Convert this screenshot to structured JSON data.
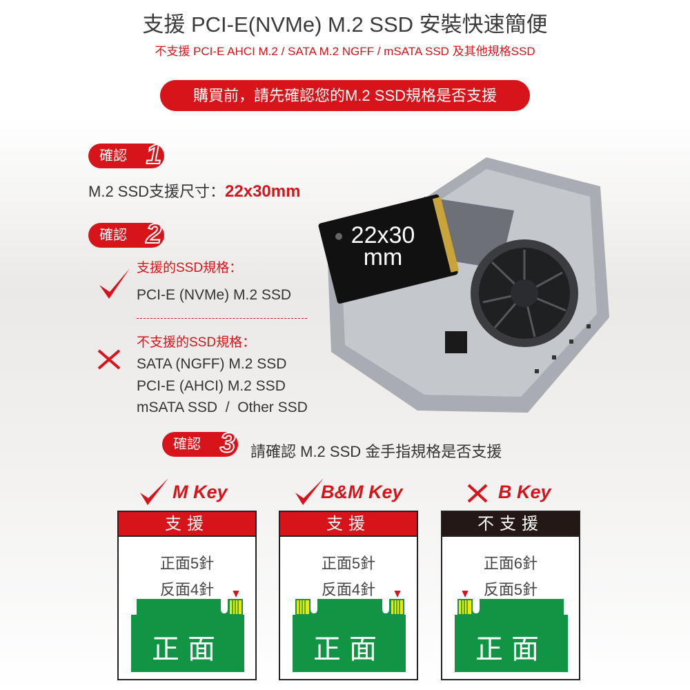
{
  "header": {
    "title": "支援 PCI-E(NVMe) M.2 SSD  安裝快速簡便",
    "subtitle": "不支援 PCI-E AHCI M.2 / SATA M.2 NGFF / mSATA SSD 及其他規格SSD",
    "notice": "購買前，請先確認您的M.2 SSD規格是否支援"
  },
  "check1": {
    "badge": "確認",
    "num": "1",
    "label": "M.2 SSD支援尺寸：",
    "value": "22x30mm"
  },
  "check2": {
    "badge": "確認",
    "num": "2",
    "supported_title": "支援的SSD規格：",
    "supported": [
      "PCI-E (NVMe) M.2 SSD"
    ],
    "unsupported_title": "不支援的SSD規格：",
    "unsupported": [
      "SATA (NGFF) M.2 SSD",
      "PCI-E (AHCI) M.2 SSD",
      "mSATA SSD  /  Other SSD"
    ]
  },
  "product": {
    "ssd_label_1": "22x30",
    "ssd_label_2": "mm"
  },
  "check3": {
    "badge": "確認",
    "num": "3",
    "label": "請確認 M.2 SSD 金手指規格是否支援"
  },
  "keys": [
    {
      "name": "M Key",
      "status": "支援",
      "front": "正面5針",
      "back": "反面4針",
      "board": "正面",
      "supported": true
    },
    {
      "name": "B&M Key",
      "status": "支援",
      "front": "正面5針",
      "back": "反面4針",
      "board": "正面",
      "supported": true
    },
    {
      "name": "B Key",
      "status": "不支援",
      "front": "正面6針",
      "back": "反面5針",
      "board": "正面",
      "supported": false
    }
  ],
  "colors": {
    "accent": "#d7141a",
    "board": "#129445",
    "pins": "#f2e600",
    "unsupported_header": "#231815"
  }
}
